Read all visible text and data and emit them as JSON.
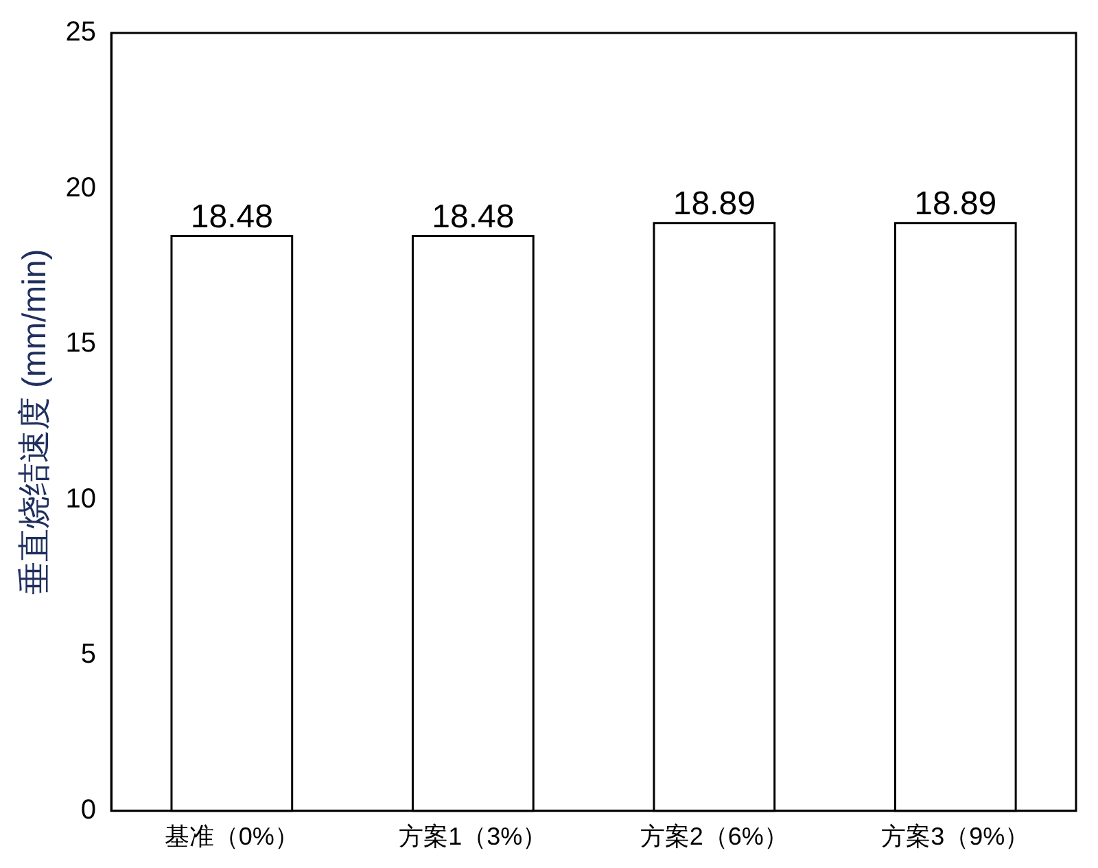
{
  "chart_data": {
    "type": "bar",
    "ylabel": "垂直烧结速度 (mm/min)",
    "categories": [
      "基准（0%）",
      "方案1（3%）",
      "方案2（6%）",
      "方案3（9%）"
    ],
    "values": [
      18.48,
      18.48,
      18.89,
      18.89
    ],
    "value_labels": [
      "18.48",
      "18.48",
      "18.89",
      "18.89"
    ],
    "color": "#ffffff",
    "ylim": [
      0,
      25
    ],
    "yticks": [
      0,
      5,
      10,
      15,
      20,
      25
    ],
    "grid": false,
    "legend": false
  }
}
